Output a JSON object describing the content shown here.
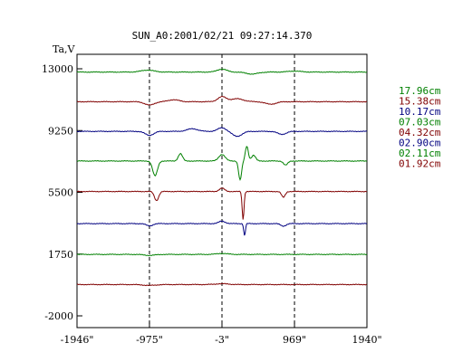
{
  "chart_data": {
    "type": "line",
    "title": "SUN_A0:2001/02/21 09:27:14.370",
    "ylabel": "Ta,V",
    "xlabel": "",
    "xlim": [
      -1946,
      1940
    ],
    "ylim": [
      -2000,
      13000
    ],
    "x_ticks": [
      -1946,
      -975,
      -3,
      969,
      1940
    ],
    "x_tick_labels": [
      "-1946\"",
      "-975\"",
      "-3\"",
      "969\"",
      "1940\""
    ],
    "y_ticks": [
      13000,
      9250,
      5500,
      1750,
      -2000
    ],
    "y_tick_labels": [
      "13000",
      "9250",
      "5500",
      "1750",
      "-2000"
    ],
    "vlines": [
      -975,
      -3,
      969
    ],
    "grid": false,
    "legend_position": "right",
    "series": [
      {
        "name": "17.96cm",
        "color": "#008000",
        "baseline": 12800,
        "features": [
          [
            -1000,
            120,
            120
          ],
          [
            -3,
            180,
            90
          ],
          [
            400,
            -120,
            110
          ],
          [
            969,
            60,
            120
          ]
        ]
      },
      {
        "name": "15.38cm",
        "color": "#800000",
        "baseline": 11000,
        "features": [
          [
            -975,
            -200,
            90
          ],
          [
            -650,
            120,
            100
          ],
          [
            -3,
            300,
            80
          ],
          [
            200,
            180,
            120
          ],
          [
            650,
            -150,
            100
          ]
        ]
      },
      {
        "name": "10.17cm",
        "color": "#000080",
        "baseline": 9200,
        "features": [
          [
            -975,
            -240,
            80
          ],
          [
            -400,
            160,
            100
          ],
          [
            -3,
            220,
            80
          ],
          [
            200,
            -300,
            90
          ],
          [
            800,
            -180,
            80
          ]
        ]
      },
      {
        "name": "07.03cm",
        "color": "#008000",
        "baseline": 7400,
        "features": [
          [
            -900,
            -900,
            45
          ],
          [
            -560,
            450,
            40
          ],
          [
            -3,
            400,
            60
          ],
          [
            240,
            -1150,
            28
          ],
          [
            330,
            900,
            28
          ],
          [
            420,
            350,
            40
          ],
          [
            850,
            -250,
            40
          ]
        ]
      },
      {
        "name": "04.32cm",
        "color": "#800000",
        "baseline": 5550,
        "features": [
          [
            -880,
            -550,
            40
          ],
          [
            -3,
            200,
            50
          ],
          [
            280,
            -1700,
            18
          ],
          [
            820,
            -350,
            35
          ]
        ]
      },
      {
        "name": "02.90cm",
        "color": "#000080",
        "baseline": 3600,
        "features": [
          [
            -975,
            -140,
            60
          ],
          [
            -3,
            150,
            60
          ],
          [
            300,
            -740,
            16
          ],
          [
            820,
            -150,
            50
          ]
        ]
      },
      {
        "name": "02.11cm",
        "color": "#008000",
        "baseline": 1730,
        "features": [
          [
            -975,
            -60,
            100
          ],
          [
            -3,
            60,
            100
          ]
        ]
      },
      {
        "name": "01.92cm",
        "color": "#800000",
        "baseline": -100,
        "features": [
          [
            -975,
            -50,
            120
          ],
          [
            -3,
            50,
            120
          ]
        ]
      }
    ]
  }
}
